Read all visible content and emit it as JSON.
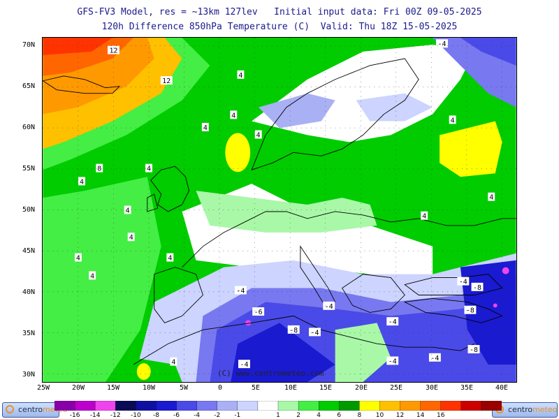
{
  "header": {
    "line1": "GFS-FV3 Model, res = ~13km 127lev   Initial input data: Fri 00Z 09-05-2025",
    "line2": "120h Difference 850hPa Temperature (C)  Valid: Thu 18Z 15-05-2025"
  },
  "map": {
    "copyright": "(C) www.centrometeo.com",
    "lat_labels": [
      "70N",
      "65N",
      "60N",
      "55N",
      "50N",
      "45N",
      "40N",
      "35N",
      "30N"
    ],
    "lon_labels": [
      "25W",
      "20W",
      "15W",
      "10W",
      "5W",
      "0",
      "5E",
      "10E",
      "15E",
      "20E",
      "25E",
      "30E",
      "35E",
      "40E"
    ],
    "contour_labels": [
      {
        "text": "12",
        "lon": -15,
        "lat": 69.5
      },
      {
        "text": "12",
        "lon": -7.5,
        "lat": 65.8
      },
      {
        "text": "4",
        "lon": 3,
        "lat": 66.5
      },
      {
        "text": "4",
        "lon": -2,
        "lat": 60.1
      },
      {
        "text": "4",
        "lon": 2,
        "lat": 61.6
      },
      {
        "text": "4",
        "lon": 5.5,
        "lat": 59.2
      },
      {
        "text": "8",
        "lon": -17,
        "lat": 55.1
      },
      {
        "text": "4",
        "lon": -10,
        "lat": 55.1
      },
      {
        "text": "4",
        "lon": -19.5,
        "lat": 53.5
      },
      {
        "text": "4",
        "lon": -13,
        "lat": 50.0
      },
      {
        "text": "4",
        "lon": -12.5,
        "lat": 46.7
      },
      {
        "text": "4",
        "lon": -20,
        "lat": 44.2
      },
      {
        "text": "4",
        "lon": -7,
        "lat": 44.2
      },
      {
        "text": "4",
        "lon": -18,
        "lat": 42.0
      },
      {
        "text": "4",
        "lon": -6.5,
        "lat": 31.5
      },
      {
        "text": "-4",
        "lon": 31.5,
        "lat": 70.3
      },
      {
        "text": "4",
        "lon": 33,
        "lat": 61.0
      },
      {
        "text": "4",
        "lon": 38.5,
        "lat": 51.6
      },
      {
        "text": "4",
        "lon": 29,
        "lat": 49.3
      },
      {
        "text": "-4",
        "lon": 3,
        "lat": 40.2
      },
      {
        "text": "-6",
        "lon": 5.5,
        "lat": 37.6
      },
      {
        "text": "-4",
        "lon": 15.5,
        "lat": 38.3
      },
      {
        "text": "-4",
        "lon": 24.5,
        "lat": 36.4
      },
      {
        "text": "-4",
        "lon": 13.5,
        "lat": 35.1
      },
      {
        "text": "-8",
        "lon": 10.5,
        "lat": 35.4
      },
      {
        "text": "-4",
        "lon": 3.5,
        "lat": 31.2
      },
      {
        "text": "-4",
        "lon": 24.5,
        "lat": 31.6
      },
      {
        "text": "-4",
        "lon": 30.5,
        "lat": 32.0
      },
      {
        "text": "-4",
        "lon": 34.5,
        "lat": 41.3
      },
      {
        "text": "-8",
        "lon": 36.5,
        "lat": 40.6
      },
      {
        "text": "-8",
        "lon": 35.5,
        "lat": 37.8
      },
      {
        "text": "-8",
        "lon": 36,
        "lat": 33.0
      }
    ]
  },
  "legend": {
    "labels": [
      "-16",
      "-14",
      "-12",
      "-10",
      "-8",
      "-6",
      "-4",
      "-2",
      "-1",
      "1",
      "2",
      "4",
      "6",
      "8",
      "10",
      "12",
      "14",
      "16"
    ],
    "colors": [
      "#8800aa",
      "#bb00cc",
      "#ee44ee",
      "#0a0a55",
      "#1010a0",
      "#1a1ad0",
      "#4a4ae8",
      "#7878f0",
      "#aab0f4",
      "#ccd4ff",
      "#ffffff",
      "#a8f8a8",
      "#44ee44",
      "#00cc00",
      "#009a00",
      "#ffff00",
      "#ffc000",
      "#ff9900",
      "#ff6600",
      "#ff3300",
      "#cc0000",
      "#990000"
    ],
    "logo_left": {
      "part1": "centro",
      "part2": "meteo"
    },
    "logo_right": {
      "part1": "centro",
      "part2": "meteo"
    }
  }
}
